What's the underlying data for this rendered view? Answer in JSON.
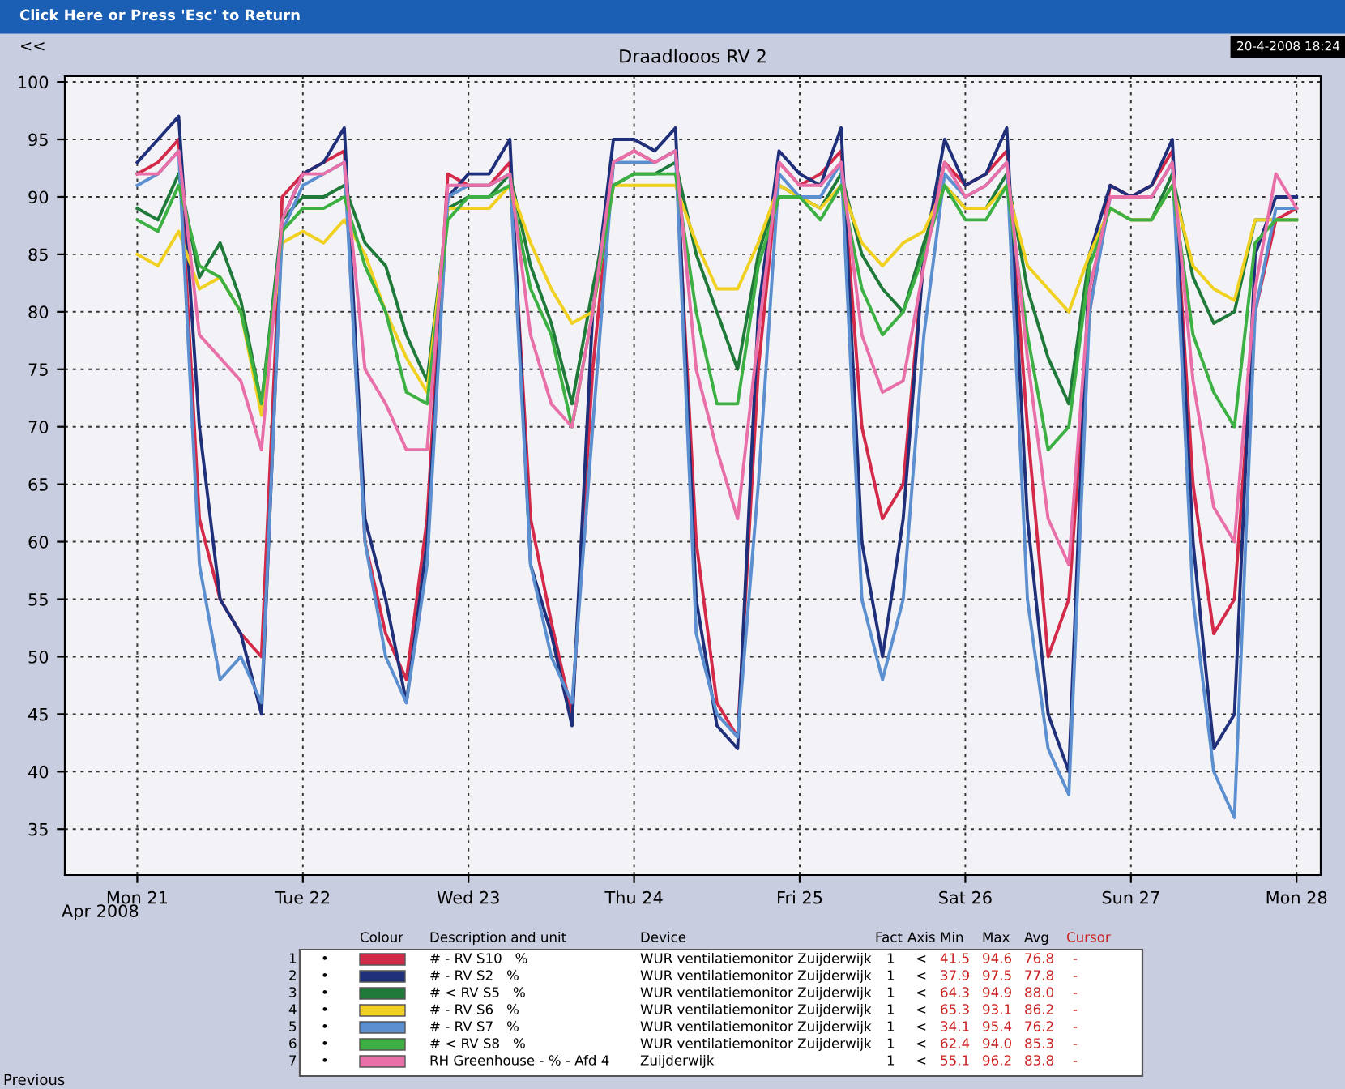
{
  "chart_data": {
    "type": "line",
    "title": "Draadlooos RV 2",
    "x": [
      "2008-04-21T00:00",
      "2008-04-21T03:00",
      "2008-04-21T06:00",
      "2008-04-21T09:00",
      "2008-04-21T12:00",
      "2008-04-21T15:00",
      "2008-04-21T18:00",
      "2008-04-21T21:00",
      "2008-04-22T00:00",
      "2008-04-22T03:00",
      "2008-04-22T06:00",
      "2008-04-22T09:00",
      "2008-04-22T12:00",
      "2008-04-22T15:00",
      "2008-04-22T18:00",
      "2008-04-22T21:00",
      "2008-04-23T00:00",
      "2008-04-23T03:00",
      "2008-04-23T06:00",
      "2008-04-23T09:00",
      "2008-04-23T12:00",
      "2008-04-23T15:00",
      "2008-04-23T18:00",
      "2008-04-23T21:00",
      "2008-04-24T00:00",
      "2008-04-24T03:00",
      "2008-04-24T06:00",
      "2008-04-24T09:00",
      "2008-04-24T12:00",
      "2008-04-24T15:00",
      "2008-04-24T18:00",
      "2008-04-24T21:00",
      "2008-04-25T00:00",
      "2008-04-25T03:00",
      "2008-04-25T06:00",
      "2008-04-25T09:00",
      "2008-04-25T12:00",
      "2008-04-25T15:00",
      "2008-04-25T18:00",
      "2008-04-25T21:00",
      "2008-04-26T00:00",
      "2008-04-26T03:00",
      "2008-04-26T06:00",
      "2008-04-26T09:00",
      "2008-04-26T12:00",
      "2008-04-26T15:00",
      "2008-04-26T18:00",
      "2008-04-26T21:00",
      "2008-04-27T00:00",
      "2008-04-27T03:00",
      "2008-04-27T06:00",
      "2008-04-27T09:00",
      "2008-04-27T12:00",
      "2008-04-27T15:00",
      "2008-04-27T18:00",
      "2008-04-27T21:00",
      "2008-04-28T00:00"
    ],
    "series": [
      {
        "name": "# - RV S10   %",
        "color": "#d42a4a",
        "values": [
          92,
          93,
          95,
          62,
          55,
          52,
          50,
          90,
          92,
          93,
          94,
          60,
          52,
          48,
          62,
          92,
          91,
          91,
          93,
          62,
          53,
          45,
          75,
          93,
          94,
          93,
          94,
          60,
          46,
          43,
          75,
          93,
          91,
          92,
          94,
          70,
          62,
          65,
          85,
          93,
          91,
          92,
          94,
          70,
          50,
          55,
          80,
          91,
          90,
          91,
          94,
          65,
          52,
          55,
          80,
          88,
          89
        ]
      },
      {
        "name": "# - RV S2   %",
        "color": "#1f2f7a",
        "values": [
          93,
          95,
          97,
          70,
          55,
          52,
          45,
          88,
          92,
          93,
          96,
          62,
          55,
          46,
          60,
          90,
          92,
          92,
          95,
          58,
          52,
          44,
          80,
          95,
          95,
          94,
          96,
          55,
          44,
          42,
          80,
          94,
          92,
          91,
          96,
          60,
          50,
          62,
          85,
          95,
          91,
          92,
          96,
          62,
          45,
          40,
          85,
          91,
          90,
          91,
          95,
          60,
          42,
          45,
          85,
          90,
          90
        ]
      },
      {
        "name": "# < RV S5   %",
        "color": "#1f7a3a",
        "values": [
          89,
          88,
          92,
          83,
          86,
          81,
          72,
          88,
          90,
          90,
          91,
          86,
          84,
          78,
          74,
          89,
          90,
          90,
          92,
          84,
          79,
          72,
          82,
          91,
          92,
          92,
          93,
          85,
          80,
          75,
          85,
          91,
          90,
          89,
          92,
          85,
          82,
          80,
          86,
          91,
          89,
          89,
          92,
          82,
          76,
          72,
          85,
          89,
          88,
          88,
          92,
          83,
          79,
          80,
          88,
          88,
          88
        ]
      },
      {
        "name": "# - RV S6   %",
        "color": "#f0d020",
        "values": [
          85,
          84,
          87,
          82,
          83,
          80,
          71,
          86,
          87,
          86,
          88,
          85,
          80,
          76,
          73,
          89,
          89,
          89,
          91,
          86,
          82,
          79,
          80,
          91,
          91,
          91,
          91,
          86,
          82,
          82,
          86,
          91,
          90,
          89,
          91,
          86,
          84,
          86,
          87,
          91,
          89,
          89,
          91,
          84,
          82,
          80,
          85,
          89,
          88,
          88,
          91,
          84,
          82,
          81,
          88,
          88,
          88
        ]
      },
      {
        "name": "# - RV S7   %",
        "color": "#5b8fd0",
        "values": [
          91,
          92,
          94,
          58,
          48,
          50,
          46,
          87,
          91,
          92,
          93,
          60,
          50,
          46,
          58,
          90,
          91,
          91,
          92,
          58,
          50,
          46,
          70,
          93,
          93,
          93,
          94,
          52,
          45,
          43,
          65,
          92,
          90,
          90,
          93,
          55,
          48,
          55,
          78,
          92,
          90,
          91,
          93,
          55,
          42,
          38,
          80,
          90,
          90,
          90,
          93,
          55,
          40,
          36,
          80,
          89,
          89
        ]
      },
      {
        "name": "# < RV S8   %",
        "color": "#3cb043",
        "values": [
          88,
          87,
          91,
          84,
          83,
          80,
          72,
          87,
          89,
          89,
          90,
          84,
          80,
          73,
          72,
          88,
          90,
          90,
          91,
          82,
          78,
          70,
          80,
          91,
          92,
          92,
          92,
          80,
          72,
          72,
          84,
          90,
          90,
          88,
          91,
          82,
          78,
          80,
          85,
          91,
          88,
          88,
          91,
          78,
          68,
          70,
          84,
          89,
          88,
          88,
          91,
          78,
          73,
          70,
          86,
          88,
          88
        ]
      },
      {
        "name": "RH Greenhouse - % - Afd 4",
        "color": "#e86fa8",
        "values": [
          92,
          92,
          94,
          78,
          76,
          74,
          68,
          88,
          92,
          92,
          93,
          75,
          72,
          68,
          68,
          91,
          91,
          91,
          92,
          78,
          72,
          70,
          80,
          93,
          94,
          93,
          94,
          75,
          68,
          62,
          78,
          93,
          91,
          91,
          93,
          78,
          73,
          74,
          84,
          93,
          90,
          91,
          93,
          76,
          62,
          58,
          82,
          90,
          90,
          90,
          93,
          74,
          63,
          60,
          82,
          92,
          89
        ]
      }
    ],
    "xlim": [
      "2008-04-20T13:30",
      "2008-04-28T03:30"
    ],
    "xticks": [
      {
        "value": "2008-04-21",
        "label": "Mon 21"
      },
      {
        "value": "2008-04-22",
        "label": "Tue 22"
      },
      {
        "value": "2008-04-23",
        "label": "Wed 23"
      },
      {
        "value": "2008-04-24",
        "label": "Thu 24"
      },
      {
        "value": "2008-04-25",
        "label": "Fri 25"
      },
      {
        "value": "2008-04-26",
        "label": "Sat 26"
      },
      {
        "value": "2008-04-27",
        "label": "Sun 27"
      },
      {
        "value": "2008-04-28",
        "label": "Mon 28"
      }
    ],
    "ylim": [
      31,
      100.5
    ],
    "yticks": [
      35,
      40,
      45,
      50,
      55,
      60,
      65,
      70,
      75,
      80,
      85,
      90,
      95,
      100
    ],
    "grid": true,
    "legend": "bottom",
    "annotations": [
      "Click Here or Press 'Esc' to Return",
      "<<",
      "20-4-2008 18:24",
      "Apr 2008",
      "Colour\tDescription and unit\tDevice\tFact\tAxis\tMin\tMax\tAvg\tCursor",
      "1\t•\tWUR ventilatiemonitor Zuijderwijk\t1\t<\t41.5\t94.6\t76.8\t-",
      "2\t•\tWUR ventilatiemonitor Zuijderwijk\t1\t<\t37.9\t97.5\t77.8\t-",
      "3\t•\tWUR ventilatiemonitor Zuijderwijk\t1\t<\t64.3\t94.9\t88.0\t-",
      "4\t•\tWUR ventilatiemonitor Zuijderwijk\t1\t<\t65.3\t93.1\t86.2\t-",
      "5\t•\tWUR ventilatiemonitor Zuijderwijk\t1\t<\t34.1\t95.4\t76.2\t-",
      "6\t•\tWUR ventilatiemonitor Zuijderwijk\t1\t<\t62.4\t94.0\t85.3\t-",
      "7\t•\tZuijderwijk\t1\t<\t55.1\t96.2\t83.8\t-",
      "Previous"
    ]
  }
}
